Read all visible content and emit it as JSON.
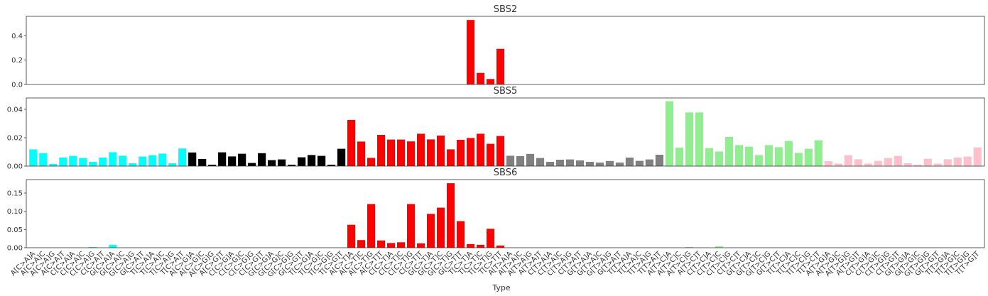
{
  "chart_data": {
    "type": "bar",
    "xlabel": "Type",
    "categories": [
      "A[C>A]A",
      "A[C>A]C",
      "A[C>A]G",
      "A[C>A]T",
      "C[C>A]A",
      "C[C>A]C",
      "C[C>A]G",
      "C[C>A]T",
      "G[C>A]A",
      "G[C>A]C",
      "G[C>A]G",
      "G[C>A]T",
      "T[C>A]A",
      "T[C>A]C",
      "T[C>A]G",
      "T[C>A]T",
      "A[C>G]A",
      "A[C>G]C",
      "A[C>G]G",
      "A[C>G]T",
      "C[C>G]A",
      "C[C>G]C",
      "C[C>G]G",
      "C[C>G]T",
      "G[C>G]A",
      "G[C>G]C",
      "G[C>G]G",
      "G[C>G]T",
      "T[C>G]A",
      "T[C>G]C",
      "T[C>G]G",
      "T[C>G]T",
      "A[C>T]A",
      "A[C>T]C",
      "A[C>T]G",
      "A[C>T]T",
      "C[C>T]A",
      "C[C>T]C",
      "C[C>T]G",
      "C[C>T]T",
      "G[C>T]A",
      "G[C>T]C",
      "G[C>T]G",
      "G[C>T]T",
      "T[C>T]A",
      "T[C>T]C",
      "T[C>T]G",
      "T[C>T]T",
      "A[T>A]A",
      "A[T>A]C",
      "A[T>A]G",
      "A[T>A]T",
      "C[T>A]A",
      "C[T>A]C",
      "C[T>A]G",
      "C[T>A]T",
      "G[T>A]A",
      "G[T>A]C",
      "G[T>A]G",
      "G[T>A]T",
      "T[T>A]A",
      "T[T>A]C",
      "T[T>A]G",
      "T[T>A]T",
      "A[T>C]A",
      "A[T>C]C",
      "A[T>C]G",
      "A[T>C]T",
      "C[T>C]A",
      "C[T>C]C",
      "C[T>C]G",
      "C[T>C]T",
      "G[T>C]A",
      "G[T>C]C",
      "G[T>C]G",
      "G[T>C]T",
      "T[T>C]A",
      "T[T>C]C",
      "T[T>C]G",
      "T[T>C]T",
      "A[T>G]A",
      "A[T>G]C",
      "A[T>G]G",
      "A[T>G]T",
      "C[T>G]A",
      "C[T>G]C",
      "C[T>G]G",
      "C[T>G]T",
      "G[T>G]A",
      "G[T>G]C",
      "G[T>G]G",
      "G[T>G]T",
      "T[T>G]A",
      "T[T>G]C",
      "T[T>G]G",
      "T[T>G]T"
    ],
    "tick_labels": [
      "A[C>A]A",
      "A[C>A]C",
      "A[C>A]G",
      "A[C>A]T",
      "C[C>A]A",
      "C[C>A]C",
      "C[C>A]G",
      "C[C>A]T",
      "G[C>A]A",
      "G[C>A]C",
      "G[C>A]G",
      "G[C>A]T",
      "T[C>A]A",
      "T[C>A]C",
      "T[C>A]G",
      "T[C>A]T",
      "A[C>G]A",
      "A[C>G]C",
      "A[C>G]G",
      "A[C>G]T",
      "C[C>G]A",
      "C[C>G]C",
      "C[C>G]G",
      "C[C>G]T",
      "G[C>G]A",
      "G[C>G]C",
      "G[C>G]G",
      "G[C>G]T",
      "T[C>G]A",
      "T[C>G]C",
      "T[C>G]G",
      "T[C>G]T",
      "A[C>T]A",
      "A[C>T]C",
      "A[C>T]G",
      "A[C>T]T",
      "C[C>T]A",
      "C[C>T]C",
      "C[C>T]G",
      "C[C>T]T",
      "G[C>T]A",
      "G[C>T]C",
      "G[C>T]G",
      "G[C>T]T",
      "T[C>T]A",
      "T[C>T]C",
      "T[C>T]G",
      "T[C>T]T",
      "A[T>A]A",
      "A[T>A]C",
      "A[T>A]G",
      "A[T>A]T",
      "C[T>A]A",
      "C[T>A]C",
      "C[T>A]G",
      "C[T>A]T",
      "G[T>A]A",
      "G[T>A]C",
      "G[T>A]G",
      "G[T>A]T",
      "T[T>A]A",
      "T[T>A]C",
      "T[T>A]G",
      "T[T>A]T",
      "A[T>C]A",
      "A[T>C]C",
      "A[T>C]G",
      "A[T>C]T",
      "C[T>C]A",
      "C[T>C]C",
      "C[T>C]G",
      "C[T>C]T",
      "G[T>C]A",
      "G[T>C]C",
      "G[T>C]G",
      "G[T>C]T",
      "T[T>C]A",
      "T[T>C]C",
      "T[T>C]G",
      "T[T>C]T",
      "A[T>G]A",
      "A[T>G]C",
      "A[T>G]G",
      "A[T>G]T",
      "C[T>G]A",
      "C[T>G]C",
      "C[T>G]G",
      "C[T>G]T",
      "G[T>G]A",
      "G[T>G]C",
      "G[T>G]G",
      "G[T>G]T",
      "T[T>G]A",
      "T[T>G]C",
      "T[T>G]G",
      "T[T>G]T"
    ],
    "group_colors": [
      "#00ffff",
      "#000000",
      "#ff0000",
      "#808080",
      "#90ee90",
      "#ffc0cb"
    ],
    "grid": false,
    "panels": [
      {
        "title": "SBS2",
        "ylim": [
          0,
          0.56
        ],
        "yticks": [
          0.0,
          0.2,
          0.4
        ],
        "ytick_labels": [
          "0.0",
          "0.2",
          "0.4"
        ],
        "values": [
          0,
          0,
          0,
          0,
          0,
          0,
          0,
          0,
          0,
          0,
          0,
          0,
          0,
          0,
          0,
          0,
          0,
          0,
          0,
          0,
          0,
          0,
          0,
          0,
          0,
          0,
          0,
          0,
          0,
          0,
          0,
          0,
          0,
          0,
          0,
          0,
          0,
          0,
          0,
          0,
          0,
          0,
          0,
          0,
          0.53,
          0.095,
          0.045,
          0.293,
          0,
          0,
          0,
          0,
          0,
          0,
          0,
          0,
          0,
          0,
          0,
          0,
          0,
          0,
          0,
          0,
          0,
          0,
          0,
          0,
          0,
          0,
          0,
          0,
          0,
          0,
          0,
          0,
          0,
          0,
          0,
          0,
          0,
          0,
          0,
          0,
          0,
          0,
          0,
          0,
          0,
          0,
          0,
          0,
          0,
          0,
          0,
          0
        ]
      },
      {
        "title": "SBS5",
        "ylim": [
          0,
          0.048
        ],
        "yticks": [
          0.0,
          0.02,
          0.04
        ],
        "ytick_labels": [
          "0.00",
          "0.02",
          "0.04"
        ],
        "values": [
          0.0118,
          0.0092,
          0.0015,
          0.0061,
          0.0072,
          0.0057,
          0.003,
          0.006,
          0.0098,
          0.0073,
          0.002,
          0.0067,
          0.0077,
          0.0088,
          0.002,
          0.0124,
          0.0096,
          0.005,
          0.001,
          0.0097,
          0.0068,
          0.0087,
          0.0022,
          0.0091,
          0.0042,
          0.0047,
          0.001,
          0.0062,
          0.0078,
          0.0072,
          0.001,
          0.0122,
          0.0325,
          0.0173,
          0.0058,
          0.022,
          0.0187,
          0.0187,
          0.0174,
          0.0228,
          0.0188,
          0.0215,
          0.0118,
          0.0185,
          0.0198,
          0.0228,
          0.0157,
          0.0212,
          0.0073,
          0.007,
          0.0086,
          0.0057,
          0.003,
          0.0045,
          0.0047,
          0.004,
          0.003,
          0.0025,
          0.0036,
          0.0025,
          0.006,
          0.0037,
          0.0047,
          0.008,
          0.0457,
          0.0131,
          0.0378,
          0.0378,
          0.0127,
          0.0103,
          0.0205,
          0.0148,
          0.0137,
          0.0078,
          0.0148,
          0.0133,
          0.0177,
          0.0093,
          0.0122,
          0.0182,
          0.0035,
          0.0018,
          0.0077,
          0.0048,
          0.0018,
          0.0037,
          0.0057,
          0.0072,
          0.002,
          0.001,
          0.0052,
          0.0018,
          0.0048,
          0.006,
          0.0067,
          0.0132
        ]
      },
      {
        "title": "SBS6",
        "ylim": [
          0,
          0.187
        ],
        "yticks": [
          0.0,
          0.05,
          0.1,
          0.15
        ],
        "ytick_labels": [
          "0.00",
          "0.05",
          "0.10",
          "0.15"
        ],
        "values": [
          0,
          0,
          0,
          0,
          0,
          0,
          0.002,
          0,
          0.008,
          0,
          0,
          0,
          0,
          0,
          0,
          0,
          0,
          0,
          0,
          0,
          0,
          0,
          0,
          0,
          0,
          0,
          0,
          0,
          0,
          0,
          0,
          0,
          0.063,
          0.021,
          0.12,
          0.02,
          0.013,
          0.015,
          0.12,
          0.012,
          0.093,
          0.11,
          0.177,
          0.073,
          0.01,
          0.008,
          0.052,
          0.006,
          0,
          0,
          0,
          0,
          0,
          0,
          0,
          0,
          0,
          0,
          0,
          0,
          0,
          0,
          0,
          0,
          0,
          0,
          0.002,
          0,
          0,
          0.004,
          0,
          0,
          0,
          0,
          0,
          0,
          0,
          0,
          0,
          0,
          0,
          0,
          0,
          0,
          0,
          0,
          0,
          0,
          0,
          0,
          0,
          0,
          0,
          0,
          0,
          0
        ]
      }
    ]
  }
}
